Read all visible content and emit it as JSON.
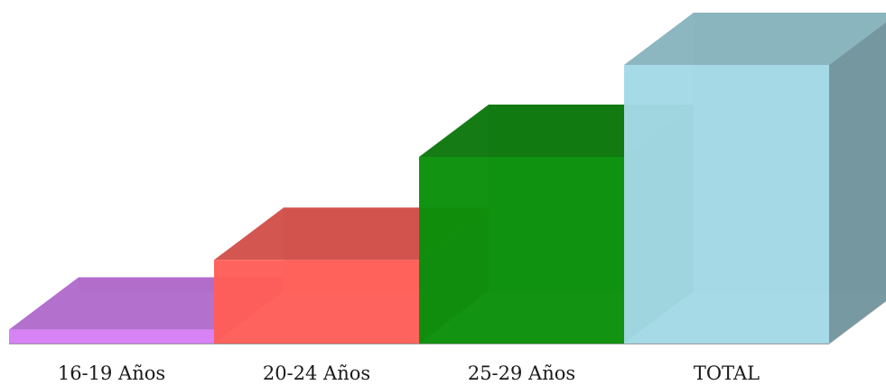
{
  "chart_data": {
    "type": "bar",
    "style": "3d",
    "categories": [
      "16-19 Años",
      "20-24 Años",
      "25-29 Años",
      "TOTAL"
    ],
    "values": [
      5,
      30,
      67,
      100
    ],
    "title": "",
    "xlabel": "",
    "ylabel": "",
    "ylim": [
      0,
      100
    ],
    "grid": false,
    "legend": "none",
    "colors": [
      "#d67ff5",
      "#ff5e58",
      "#0a8f0a",
      "#a4d9e6"
    ]
  }
}
